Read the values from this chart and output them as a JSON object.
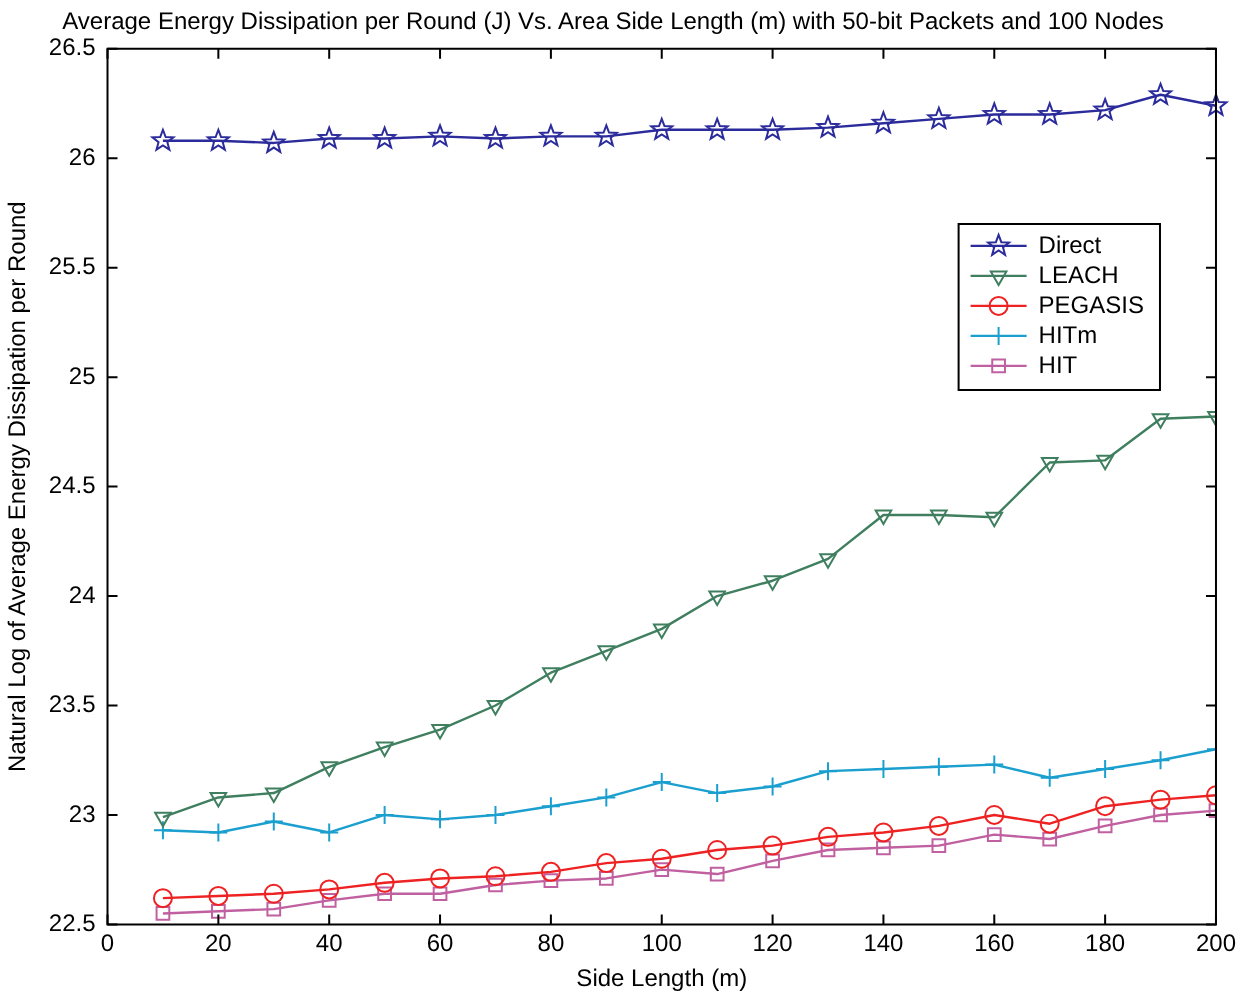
{
  "chart_data": {
    "type": "line",
    "title": "Average Energy Dissipation per Round (J) Vs. Area Side Length (m) with 50-bit Packets and 100 Nodes",
    "xlabel": "Side Length (m)",
    "ylabel": "Natural Log of Average Energy Dissipation per Round",
    "x": [
      10,
      20,
      30,
      40,
      50,
      60,
      70,
      80,
      90,
      100,
      110,
      120,
      130,
      140,
      150,
      160,
      170,
      180,
      190,
      200
    ],
    "series": [
      {
        "name": "Direct",
        "color": "#2b2b9b",
        "marker": "star",
        "values": [
          26.08,
          26.08,
          26.07,
          26.09,
          26.09,
          26.1,
          26.09,
          26.1,
          26.1,
          26.13,
          26.13,
          26.13,
          26.14,
          26.16,
          26.18,
          26.2,
          26.2,
          26.22,
          26.29,
          26.24
        ]
      },
      {
        "name": "LEACH",
        "color": "#3f7f5f",
        "marker": "triangle",
        "values": [
          22.99,
          23.08,
          23.1,
          23.22,
          23.31,
          23.39,
          23.5,
          23.65,
          23.75,
          23.85,
          24.0,
          24.07,
          24.17,
          24.37,
          24.37,
          24.36,
          24.61,
          24.62,
          24.81,
          24.82
        ]
      },
      {
        "name": "PEGASIS",
        "color": "#ee2222",
        "marker": "circle",
        "values": [
          22.62,
          22.63,
          22.64,
          22.66,
          22.69,
          22.71,
          22.72,
          22.74,
          22.78,
          22.8,
          22.84,
          22.86,
          22.9,
          22.92,
          22.95,
          23.0,
          22.96,
          23.04,
          23.07,
          23.09
        ]
      },
      {
        "name": "HITm",
        "color": "#1a9fcf",
        "marker": "cross",
        "values": [
          22.93,
          22.92,
          22.97,
          22.92,
          23.0,
          22.98,
          23.0,
          23.04,
          23.08,
          23.15,
          23.1,
          23.13,
          23.2,
          23.21,
          23.22,
          23.23,
          23.17,
          23.21,
          23.25,
          23.3
        ]
      },
      {
        "name": "HIT",
        "color": "#c060a0",
        "marker": "square",
        "values": [
          22.55,
          22.56,
          22.57,
          22.61,
          22.64,
          22.64,
          22.68,
          22.7,
          22.71,
          22.75,
          22.73,
          22.79,
          22.84,
          22.85,
          22.86,
          22.91,
          22.89,
          22.95,
          23.0,
          23.02
        ]
      }
    ],
    "xlim": [
      0,
      200
    ],
    "xticks": [
      0,
      20,
      40,
      60,
      80,
      100,
      120,
      140,
      160,
      180,
      200
    ],
    "ylim": [
      22.5,
      26.5
    ],
    "yticks": [
      22.5,
      23,
      23.5,
      24,
      24.5,
      25,
      25.5,
      26,
      26.5
    ],
    "grid": false,
    "legend": "right",
    "line_style": "solid"
  }
}
